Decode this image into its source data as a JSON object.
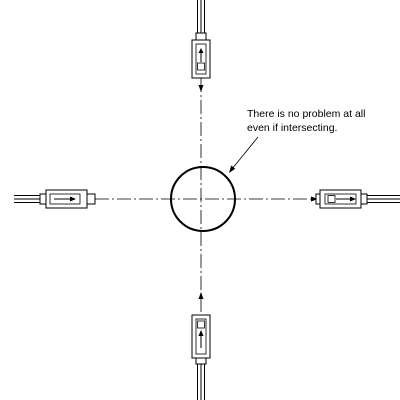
{
  "diagram": {
    "annotation": {
      "line1": "There is no problem at all",
      "line2": "even if intersecting."
    },
    "components": {
      "target": "target-object-circle",
      "sensors": [
        {
          "id": "sensor-top",
          "role": "emitter-or-receiver",
          "direction": "down"
        },
        {
          "id": "sensor-left",
          "role": "emitter",
          "direction": "right"
        },
        {
          "id": "sensor-right",
          "role": "receiver",
          "direction": "left"
        },
        {
          "id": "sensor-bottom",
          "role": "emitter-or-receiver",
          "direction": "up"
        }
      ]
    },
    "colors": {
      "stroke": "#000000",
      "background": "#ffffff"
    }
  }
}
